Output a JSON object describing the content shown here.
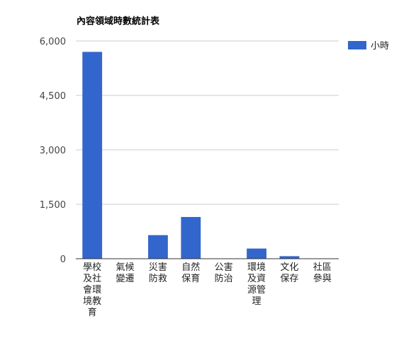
{
  "chart_data": {
    "type": "bar",
    "title": "內容領域時數統計表",
    "categories": [
      [
        "學校",
        "及社",
        "會環",
        "境教",
        "育"
      ],
      [
        "氣候",
        "變遷"
      ],
      [
        "災害",
        "防救"
      ],
      [
        "自然",
        "保育"
      ],
      [
        "公害",
        "防治"
      ],
      [
        "環境",
        "及資",
        "源管",
        "理"
      ],
      [
        "文化",
        "保存"
      ],
      [
        "社區",
        "參與"
      ]
    ],
    "series": [
      {
        "name": "小時",
        "color": "#3366cc",
        "values": [
          5700,
          0,
          650,
          1150,
          0,
          280,
          70,
          0
        ]
      }
    ],
    "yticks": [
      "0",
      "1,500",
      "3,000",
      "4,500",
      "6,000"
    ],
    "ylim": [
      0,
      6000
    ],
    "grid": true,
    "legend": "right"
  }
}
